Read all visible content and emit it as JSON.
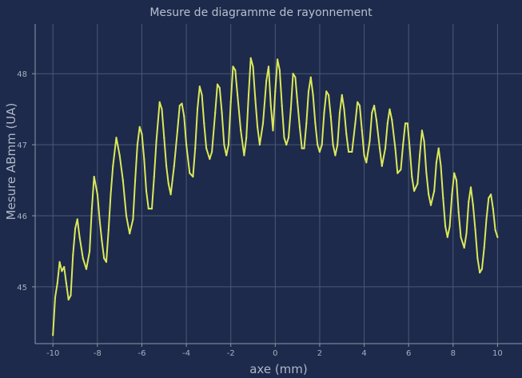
{
  "chart_data": {
    "type": "line",
    "title": "Mesure de diagramme de rayonnement",
    "xlabel": "axe (mm)",
    "ylabel": "Mesure ABmm (UA)",
    "xlim": [
      -10.8,
      11.1
    ],
    "ylim": [
      44.2,
      48.7
    ],
    "xticks": [
      "-10",
      "-8",
      "-6",
      "-4",
      "-2",
      "0",
      "2",
      "4",
      "6",
      "8",
      "10"
    ],
    "yticks": [
      "45",
      "46",
      "47",
      "48"
    ],
    "grid": true,
    "series": [
      {
        "color": "#dbe85a",
        "points": [
          [
            -10.0,
            44.32
          ],
          [
            -9.9,
            44.85
          ],
          [
            -9.8,
            45.05
          ],
          [
            -9.7,
            45.35
          ],
          [
            -9.6,
            45.22
          ],
          [
            -9.5,
            45.28
          ],
          [
            -9.4,
            45.05
          ],
          [
            -9.3,
            44.82
          ],
          [
            -9.2,
            44.88
          ],
          [
            -9.1,
            45.45
          ],
          [
            -9.0,
            45.82
          ],
          [
            -8.9,
            45.95
          ],
          [
            -8.8,
            45.7
          ],
          [
            -8.65,
            45.4
          ],
          [
            -8.5,
            45.25
          ],
          [
            -8.35,
            45.5
          ],
          [
            -8.25,
            46.1
          ],
          [
            -8.15,
            46.55
          ],
          [
            -8.0,
            46.3
          ],
          [
            -7.9,
            45.95
          ],
          [
            -7.8,
            45.65
          ],
          [
            -7.7,
            45.4
          ],
          [
            -7.6,
            45.35
          ],
          [
            -7.5,
            45.8
          ],
          [
            -7.4,
            46.3
          ],
          [
            -7.3,
            46.7
          ],
          [
            -7.15,
            47.1
          ],
          [
            -7.0,
            46.85
          ],
          [
            -6.85,
            46.5
          ],
          [
            -6.7,
            46.0
          ],
          [
            -6.55,
            45.75
          ],
          [
            -6.4,
            45.95
          ],
          [
            -6.3,
            46.5
          ],
          [
            -6.2,
            47.0
          ],
          [
            -6.1,
            47.25
          ],
          [
            -6.0,
            47.15
          ],
          [
            -5.9,
            46.8
          ],
          [
            -5.8,
            46.35
          ],
          [
            -5.7,
            46.1
          ],
          [
            -5.55,
            46.1
          ],
          [
            -5.45,
            46.55
          ],
          [
            -5.35,
            47.05
          ],
          [
            -5.2,
            47.6
          ],
          [
            -5.1,
            47.5
          ],
          [
            -5.0,
            47.1
          ],
          [
            -4.9,
            46.7
          ],
          [
            -4.8,
            46.45
          ],
          [
            -4.7,
            46.3
          ],
          [
            -4.55,
            46.7
          ],
          [
            -4.4,
            47.2
          ],
          [
            -4.3,
            47.55
          ],
          [
            -4.2,
            47.58
          ],
          [
            -4.1,
            47.4
          ],
          [
            -4.0,
            47.0
          ],
          [
            -3.85,
            46.6
          ],
          [
            -3.7,
            46.55
          ],
          [
            -3.6,
            46.95
          ],
          [
            -3.5,
            47.5
          ],
          [
            -3.4,
            47.82
          ],
          [
            -3.3,
            47.7
          ],
          [
            -3.2,
            47.3
          ],
          [
            -3.1,
            46.95
          ],
          [
            -2.95,
            46.8
          ],
          [
            -2.85,
            46.9
          ],
          [
            -2.7,
            47.45
          ],
          [
            -2.6,
            47.85
          ],
          [
            -2.5,
            47.8
          ],
          [
            -2.4,
            47.45
          ],
          [
            -2.3,
            47.0
          ],
          [
            -2.2,
            46.85
          ],
          [
            -2.1,
            47.0
          ],
          [
            -2.0,
            47.6
          ],
          [
            -1.9,
            48.1
          ],
          [
            -1.8,
            48.05
          ],
          [
            -1.7,
            47.7
          ],
          [
            -1.55,
            47.2
          ],
          [
            -1.4,
            46.85
          ],
          [
            -1.3,
            47.1
          ],
          [
            -1.2,
            47.7
          ],
          [
            -1.1,
            48.22
          ],
          [
            -1.0,
            48.1
          ],
          [
            -0.9,
            47.65
          ],
          [
            -0.8,
            47.25
          ],
          [
            -0.7,
            47.0
          ],
          [
            -0.55,
            47.3
          ],
          [
            -0.4,
            47.9
          ],
          [
            -0.3,
            48.1
          ],
          [
            -0.2,
            47.55
          ],
          [
            -0.1,
            47.2
          ],
          [
            0.0,
            47.75
          ],
          [
            0.1,
            48.2
          ],
          [
            0.2,
            48.05
          ],
          [
            0.3,
            47.55
          ],
          [
            0.4,
            47.1
          ],
          [
            0.5,
            47.0
          ],
          [
            0.6,
            47.1
          ],
          [
            0.7,
            47.5
          ],
          [
            0.8,
            48.0
          ],
          [
            0.9,
            47.95
          ],
          [
            1.0,
            47.6
          ],
          [
            1.1,
            47.25
          ],
          [
            1.2,
            46.95
          ],
          [
            1.3,
            46.95
          ],
          [
            1.4,
            47.3
          ],
          [
            1.5,
            47.75
          ],
          [
            1.6,
            47.95
          ],
          [
            1.7,
            47.7
          ],
          [
            1.8,
            47.3
          ],
          [
            1.9,
            47.0
          ],
          [
            2.0,
            46.9
          ],
          [
            2.1,
            47.0
          ],
          [
            2.2,
            47.45
          ],
          [
            2.3,
            47.75
          ],
          [
            2.4,
            47.7
          ],
          [
            2.5,
            47.4
          ],
          [
            2.6,
            47.0
          ],
          [
            2.7,
            46.85
          ],
          [
            2.8,
            47.0
          ],
          [
            2.9,
            47.45
          ],
          [
            3.0,
            47.7
          ],
          [
            3.1,
            47.5
          ],
          [
            3.2,
            47.15
          ],
          [
            3.3,
            46.9
          ],
          [
            3.45,
            46.9
          ],
          [
            3.6,
            47.3
          ],
          [
            3.7,
            47.6
          ],
          [
            3.8,
            47.55
          ],
          [
            3.9,
            47.2
          ],
          [
            4.0,
            46.85
          ],
          [
            4.1,
            46.75
          ],
          [
            4.25,
            47.05
          ],
          [
            4.35,
            47.45
          ],
          [
            4.45,
            47.55
          ],
          [
            4.55,
            47.35
          ],
          [
            4.7,
            46.95
          ],
          [
            4.8,
            46.7
          ],
          [
            4.95,
            46.95
          ],
          [
            5.05,
            47.3
          ],
          [
            5.15,
            47.5
          ],
          [
            5.25,
            47.35
          ],
          [
            5.4,
            46.95
          ],
          [
            5.5,
            46.6
          ],
          [
            5.65,
            46.65
          ],
          [
            5.75,
            47.0
          ],
          [
            5.85,
            47.3
          ],
          [
            5.95,
            47.3
          ],
          [
            6.05,
            46.95
          ],
          [
            6.15,
            46.55
          ],
          [
            6.25,
            46.35
          ],
          [
            6.4,
            46.45
          ],
          [
            6.5,
            46.85
          ],
          [
            6.6,
            47.2
          ],
          [
            6.7,
            47.05
          ],
          [
            6.8,
            46.6
          ],
          [
            6.9,
            46.3
          ],
          [
            7.0,
            46.15
          ],
          [
            7.15,
            46.35
          ],
          [
            7.25,
            46.75
          ],
          [
            7.35,
            46.95
          ],
          [
            7.45,
            46.7
          ],
          [
            7.55,
            46.25
          ],
          [
            7.65,
            45.85
          ],
          [
            7.75,
            45.7
          ],
          [
            7.85,
            45.85
          ],
          [
            7.95,
            46.3
          ],
          [
            8.05,
            46.6
          ],
          [
            8.15,
            46.5
          ],
          [
            8.25,
            46.05
          ],
          [
            8.35,
            45.7
          ],
          [
            8.5,
            45.55
          ],
          [
            8.6,
            45.75
          ],
          [
            8.7,
            46.2
          ],
          [
            8.8,
            46.4
          ],
          [
            8.9,
            46.15
          ],
          [
            9.0,
            45.8
          ],
          [
            9.1,
            45.4
          ],
          [
            9.2,
            45.2
          ],
          [
            9.3,
            45.25
          ],
          [
            9.4,
            45.55
          ],
          [
            9.5,
            45.95
          ],
          [
            9.6,
            46.25
          ],
          [
            9.7,
            46.3
          ],
          [
            9.8,
            46.1
          ],
          [
            9.9,
            45.8
          ],
          [
            10.0,
            45.7
          ]
        ]
      }
    ]
  }
}
